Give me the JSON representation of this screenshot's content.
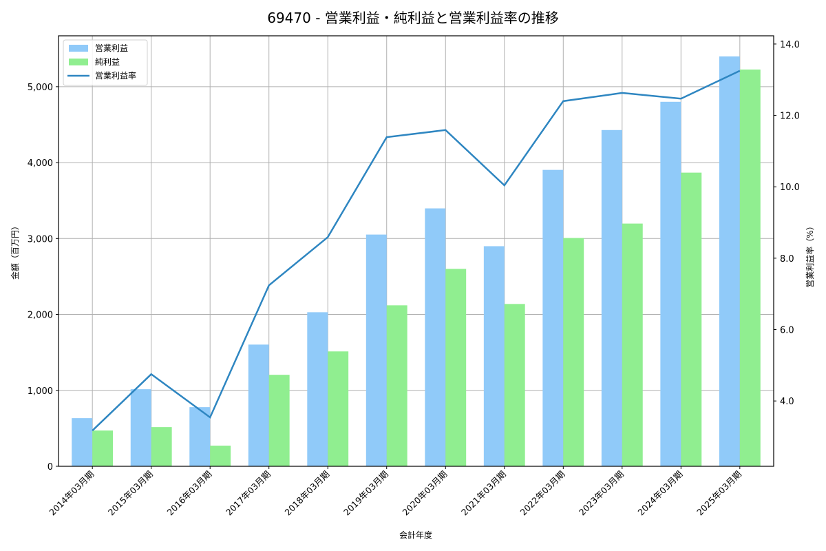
{
  "chart_data": {
    "type": "bar",
    "title": "69470 - 営業利益・純利益と営業利益率の推移",
    "xlabel": "会計年度",
    "ylabel": "金額（百万円）",
    "y2label": "営業利益率（%）",
    "categories": [
      "2014年03月期",
      "2015年03月期",
      "2016年03月期",
      "2017年03月期",
      "2018年03月期",
      "2019年03月期",
      "2020年03月期",
      "2021年03月期",
      "2022年03月期",
      "2023年03月期",
      "2024年03月期",
      "2025年03月期"
    ],
    "series": [
      {
        "name": "営業利益",
        "type": "bar",
        "axis": "left",
        "color": "#90caf9",
        "values": [
          634,
          1015,
          779,
          1603,
          2029,
          3052,
          3397,
          2899,
          3904,
          4429,
          4801,
          5399
        ]
      },
      {
        "name": "純利益",
        "type": "bar",
        "axis": "left",
        "color": "#90ee90",
        "values": [
          471,
          516,
          272,
          1205,
          1513,
          2120,
          2600,
          2138,
          3007,
          3197,
          3868,
          5226
        ]
      },
      {
        "name": "営業利益率",
        "type": "line",
        "axis": "right",
        "color": "#2e86c1",
        "values": [
          3.17,
          4.75,
          3.54,
          7.24,
          8.59,
          11.39,
          11.59,
          10.04,
          12.4,
          12.63,
          12.47,
          13.25
        ]
      }
    ],
    "ylim": [
      0,
      5670
    ],
    "y2lim": [
      2.17,
      14.23
    ],
    "yticks": [
      0,
      1000,
      2000,
      3000,
      4000,
      5000
    ],
    "ytick_labels": [
      "0",
      "1,000",
      "2,000",
      "3,000",
      "4,000",
      "5,000"
    ],
    "y2ticks": [
      4.0,
      6.0,
      8.0,
      10.0,
      12.0,
      14.0
    ],
    "y2tick_labels": [
      "4.0",
      "6.0",
      "8.0",
      "10.0",
      "12.0",
      "14.0"
    ],
    "grid": true,
    "legend_position": "upper left"
  }
}
